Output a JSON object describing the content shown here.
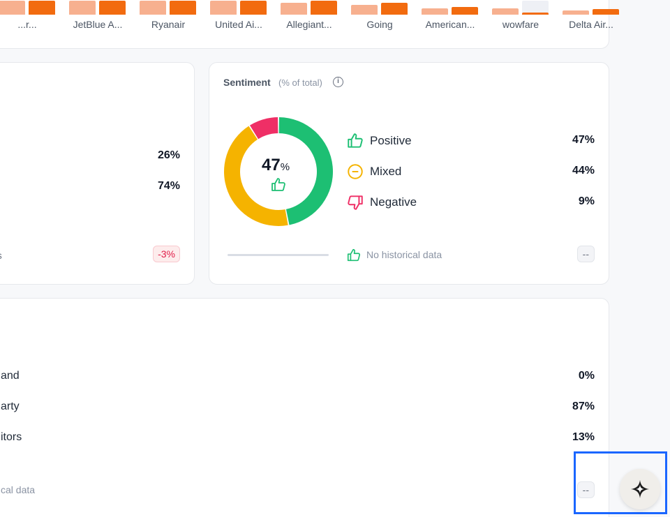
{
  "top_chart": {
    "groups": [
      {
        "label": "...r...",
        "light": 1.0,
        "dark": 1.0
      },
      {
        "label": "JetBlue A...",
        "light": 1.0,
        "dark": 1.0
      },
      {
        "label": "Ryanair",
        "light": 1.0,
        "dark": 1.0
      },
      {
        "label": "United Ai...",
        "light": 1.0,
        "dark": 1.0
      },
      {
        "label": "Allegiant...",
        "light": 0.85,
        "dark": 1.0
      },
      {
        "label": "Going",
        "light": 0.7,
        "dark": 0.85
      },
      {
        "label": "American...",
        "light": 0.45,
        "dark": 0.55
      },
      {
        "label": "wowfare",
        "light": 0.45,
        "dark": 0.15
      },
      {
        "label": "Delta Air...",
        "light": 0.3,
        "dark": 0.4
      }
    ]
  },
  "left_card": {
    "value_1": "26%",
    "value_2": "74%",
    "footer_text": "ays",
    "change": "-3%"
  },
  "sentiment": {
    "title": "Sentiment",
    "subtitle": "(% of total)",
    "info_icon": "i",
    "center_value": "47",
    "center_unit": "%",
    "items": [
      {
        "label": "Positive",
        "value": "47%",
        "color": "#1dbf73",
        "icon": "thumbs-up-icon"
      },
      {
        "label": "Mixed",
        "value": "44%",
        "color": "#f5b300",
        "icon": "minus-circle-icon"
      },
      {
        "label": "Negative",
        "value": "9%",
        "color": "#ef2f66",
        "icon": "thumbs-down-icon"
      }
    ],
    "history_text": "No historical data",
    "history_badge": "--"
  },
  "chart_data": {
    "type": "pie",
    "categories": [
      "Positive",
      "Mixed",
      "Negative"
    ],
    "values": [
      47,
      44,
      9
    ],
    "colors": [
      "#1dbf73",
      "#f5b300",
      "#ef2f66"
    ]
  },
  "bottom_card": {
    "rows": [
      {
        "label": "and",
        "value": "0%"
      },
      {
        "label": "arty",
        "value": "87%"
      },
      {
        "label": "itors",
        "value": "13%"
      }
    ],
    "history_text": "cal data",
    "history_badge": "--"
  },
  "fab": {
    "icon": "sparkle-icon"
  }
}
